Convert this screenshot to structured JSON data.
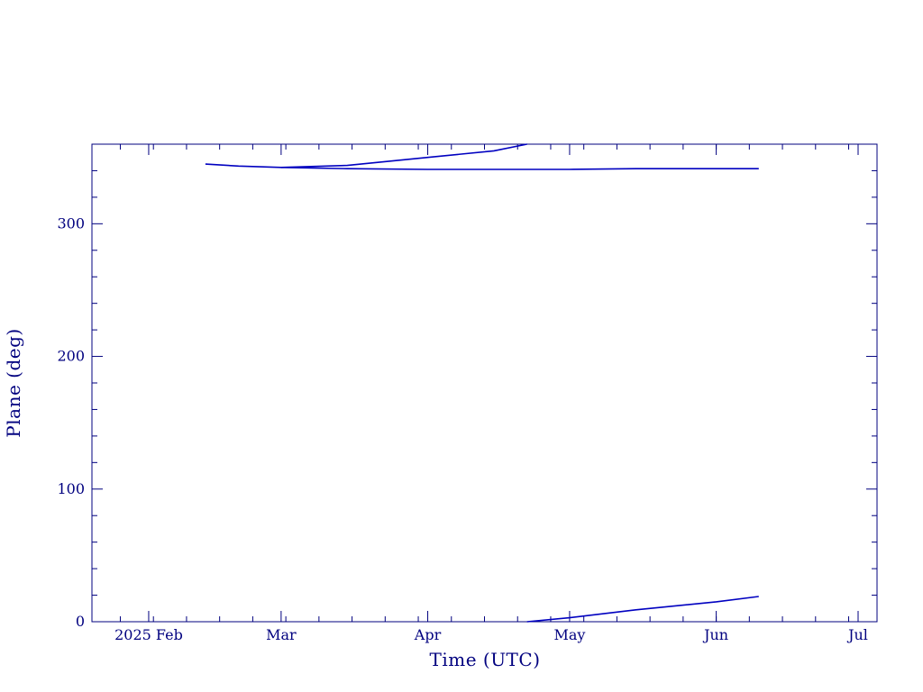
{
  "chart_data": {
    "type": "line",
    "title": "",
    "xlabel": "Time (UTC)",
    "ylabel": "Plane (deg)",
    "ylim": [
      0,
      360
    ],
    "xlim": [
      "2025-01-20",
      "2025-07-05"
    ],
    "yticks": [
      0,
      100,
      200,
      300
    ],
    "xticks": [
      {
        "date": "2025-02-01",
        "label": "2025 Feb"
      },
      {
        "date": "2025-03-01",
        "label": "Mar"
      },
      {
        "date": "2025-04-01",
        "label": "Apr"
      },
      {
        "date": "2025-05-01",
        "label": "May"
      },
      {
        "date": "2025-06-01",
        "label": "Jun"
      },
      {
        "date": "2025-07-01",
        "label": "Jul"
      }
    ],
    "grid": false,
    "legend": "none",
    "series": [
      {
        "x": [
          "2025-02-13",
          "2025-02-20",
          "2025-03-01",
          "2025-03-15",
          "2025-04-01",
          "2025-04-15",
          "2025-05-01",
          "2025-05-15",
          "2025-06-10"
        ],
        "y": [
          345,
          343.5,
          342.5,
          341.5,
          341,
          341,
          341,
          341.5,
          341.5
        ]
      },
      {
        "x": [
          "2025-03-01",
          "2025-03-15",
          "2025-04-01",
          "2025-04-15",
          "2025-04-22"
        ],
        "y": [
          342.5,
          344,
          350,
          355,
          360
        ]
      },
      {
        "x": [
          "2025-04-22",
          "2025-05-01",
          "2025-05-15",
          "2025-06-01",
          "2025-06-10"
        ],
        "y": [
          0,
          3,
          9,
          15,
          19
        ]
      }
    ],
    "colors": {
      "axis": "#00007f",
      "line": "#0000c0"
    }
  }
}
